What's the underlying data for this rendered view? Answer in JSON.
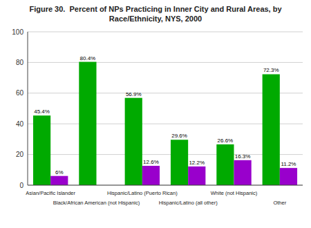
{
  "chart_data": {
    "type": "bar",
    "title": "Figure 30.  Percent of NPs Practicing in Inner City and Rural Areas, by\nRace/Ethnicity, NYS, 2000",
    "categories": [
      "Asian/Pacific Islander",
      "Black/African American (not Hispanic)",
      "Hispanic/Latino (Puerto Rican)",
      "Hispanic/Latino (all other)",
      "White (not Hispanic)",
      "Other"
    ],
    "series": [
      {
        "color": "#00aa00",
        "values": [
          45.4,
          80.4,
          56.9,
          29.6,
          26.6,
          72.3
        ],
        "value_labels": [
          "45.4%",
          "80.4%",
          "56.9%",
          "29.6%",
          "26.6%",
          "72.3%"
        ]
      },
      {
        "color": "#9900cc",
        "values": [
          6.0,
          0,
          12.6,
          12.2,
          16.3,
          11.2
        ],
        "value_labels": [
          "6%",
          null,
          "12.6%",
          "12.2%",
          "16.3%",
          "11.2%"
        ]
      }
    ],
    "ylim": [
      0,
      100
    ],
    "yticks": [
      0,
      20,
      40,
      60,
      80,
      100
    ],
    "grid": true,
    "data_labels": true
  }
}
